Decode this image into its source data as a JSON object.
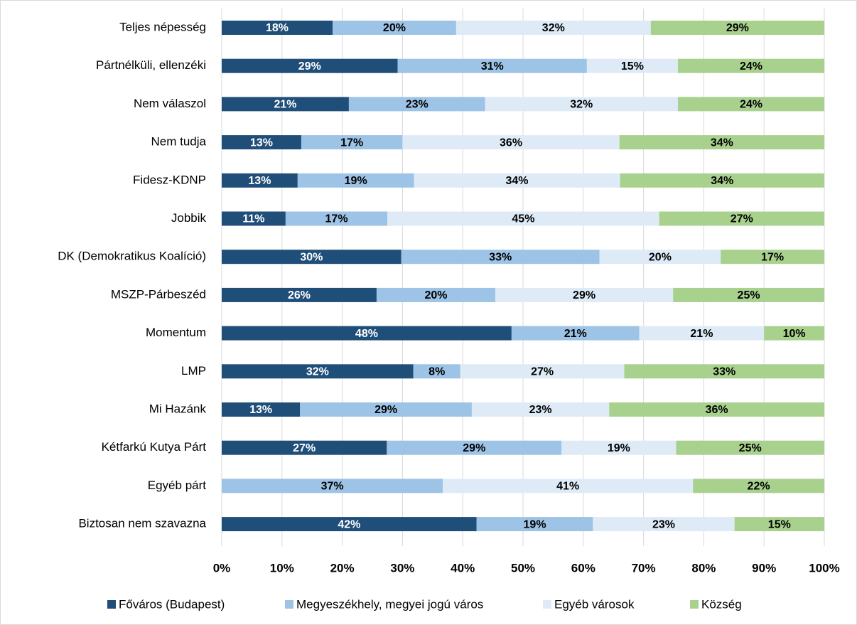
{
  "chart_data": {
    "type": "stacked_bar_horizontal",
    "categories": [
      "Teljes népesség",
      "Pártnélküli, ellenzéki",
      "Nem válaszol",
      "Nem tudja",
      "Fidesz-KDNP",
      "Jobbik",
      "DK (Demokratikus Koalíció)",
      "MSZP-Párbeszéd",
      "Momentum",
      "LMP",
      "Mi Hazánk",
      "Kétfarkú Kutya Párt",
      "Egyéb párt",
      "Biztosan nem szavazna"
    ],
    "series": [
      {
        "name": "Főváros (Budapest)",
        "color": "#1f4e79",
        "label_color": "#ffffff",
        "values": [
          18.4,
          29.2,
          21.1,
          13.2,
          12.6,
          10.6,
          29.8,
          25.7,
          48.1,
          31.8,
          13.0,
          27.4,
          null,
          42.3
        ],
        "value_labels": [
          "18%",
          "29%",
          "21%",
          "13%",
          "13%",
          "11%",
          "30%",
          "26%",
          "48%",
          "32%",
          "13%",
          "27%",
          null,
          "42%"
        ]
      },
      {
        "name": "Megyeszékhely, megyei jogú város",
        "color": "#9dc3e6",
        "label_color": "#000000",
        "values": [
          20.5,
          31.4,
          22.6,
          16.8,
          19.3,
          16.9,
          32.9,
          19.7,
          21.2,
          7.8,
          28.5,
          29.0,
          36.7,
          19.3
        ],
        "value_labels": [
          "20%",
          "31%",
          "23%",
          "17%",
          "19%",
          "17%",
          "33%",
          "20%",
          "21%",
          "8%",
          "29%",
          "29%",
          "37%",
          "19%"
        ]
      },
      {
        "name": "Egyéb városok",
        "color": "#deebf7",
        "label_color": "#000000",
        "values": [
          32.3,
          15.1,
          32.0,
          36.0,
          34.2,
          45.1,
          20.1,
          29.5,
          20.7,
          27.2,
          22.8,
          19.0,
          41.5,
          23.5
        ],
        "value_labels": [
          "32%",
          "15%",
          "32%",
          "36%",
          "34%",
          "45%",
          "20%",
          "29%",
          "21%",
          "27%",
          "23%",
          "19%",
          "41%",
          "23%"
        ]
      },
      {
        "name": "Község",
        "color": "#a9d18e",
        "label_color": "#000000",
        "values": [
          28.8,
          24.3,
          24.3,
          34.0,
          33.9,
          27.4,
          17.2,
          25.1,
          10.0,
          33.2,
          35.7,
          24.6,
          21.8,
          14.9
        ],
        "value_labels": [
          "29%",
          "24%",
          "24%",
          "34%",
          "34%",
          "27%",
          "17%",
          "25%",
          "10%",
          "33%",
          "36%",
          "25%",
          "22%",
          "15%"
        ]
      }
    ],
    "xlim": [
      0,
      100
    ],
    "xticks": [
      {
        "value": 0,
        "label": "0%"
      },
      {
        "value": 10,
        "label": "10%"
      },
      {
        "value": 20,
        "label": "20%"
      },
      {
        "value": 30,
        "label": "30%"
      },
      {
        "value": 40,
        "label": "40%"
      },
      {
        "value": 50,
        "label": "50%"
      },
      {
        "value": 60,
        "label": "60%"
      },
      {
        "value": 70,
        "label": "70%"
      },
      {
        "value": 80,
        "label": "80%"
      },
      {
        "value": 90,
        "label": "90%"
      },
      {
        "value": 100,
        "label": "100%"
      }
    ],
    "grid": true,
    "legend": "bottom"
  }
}
